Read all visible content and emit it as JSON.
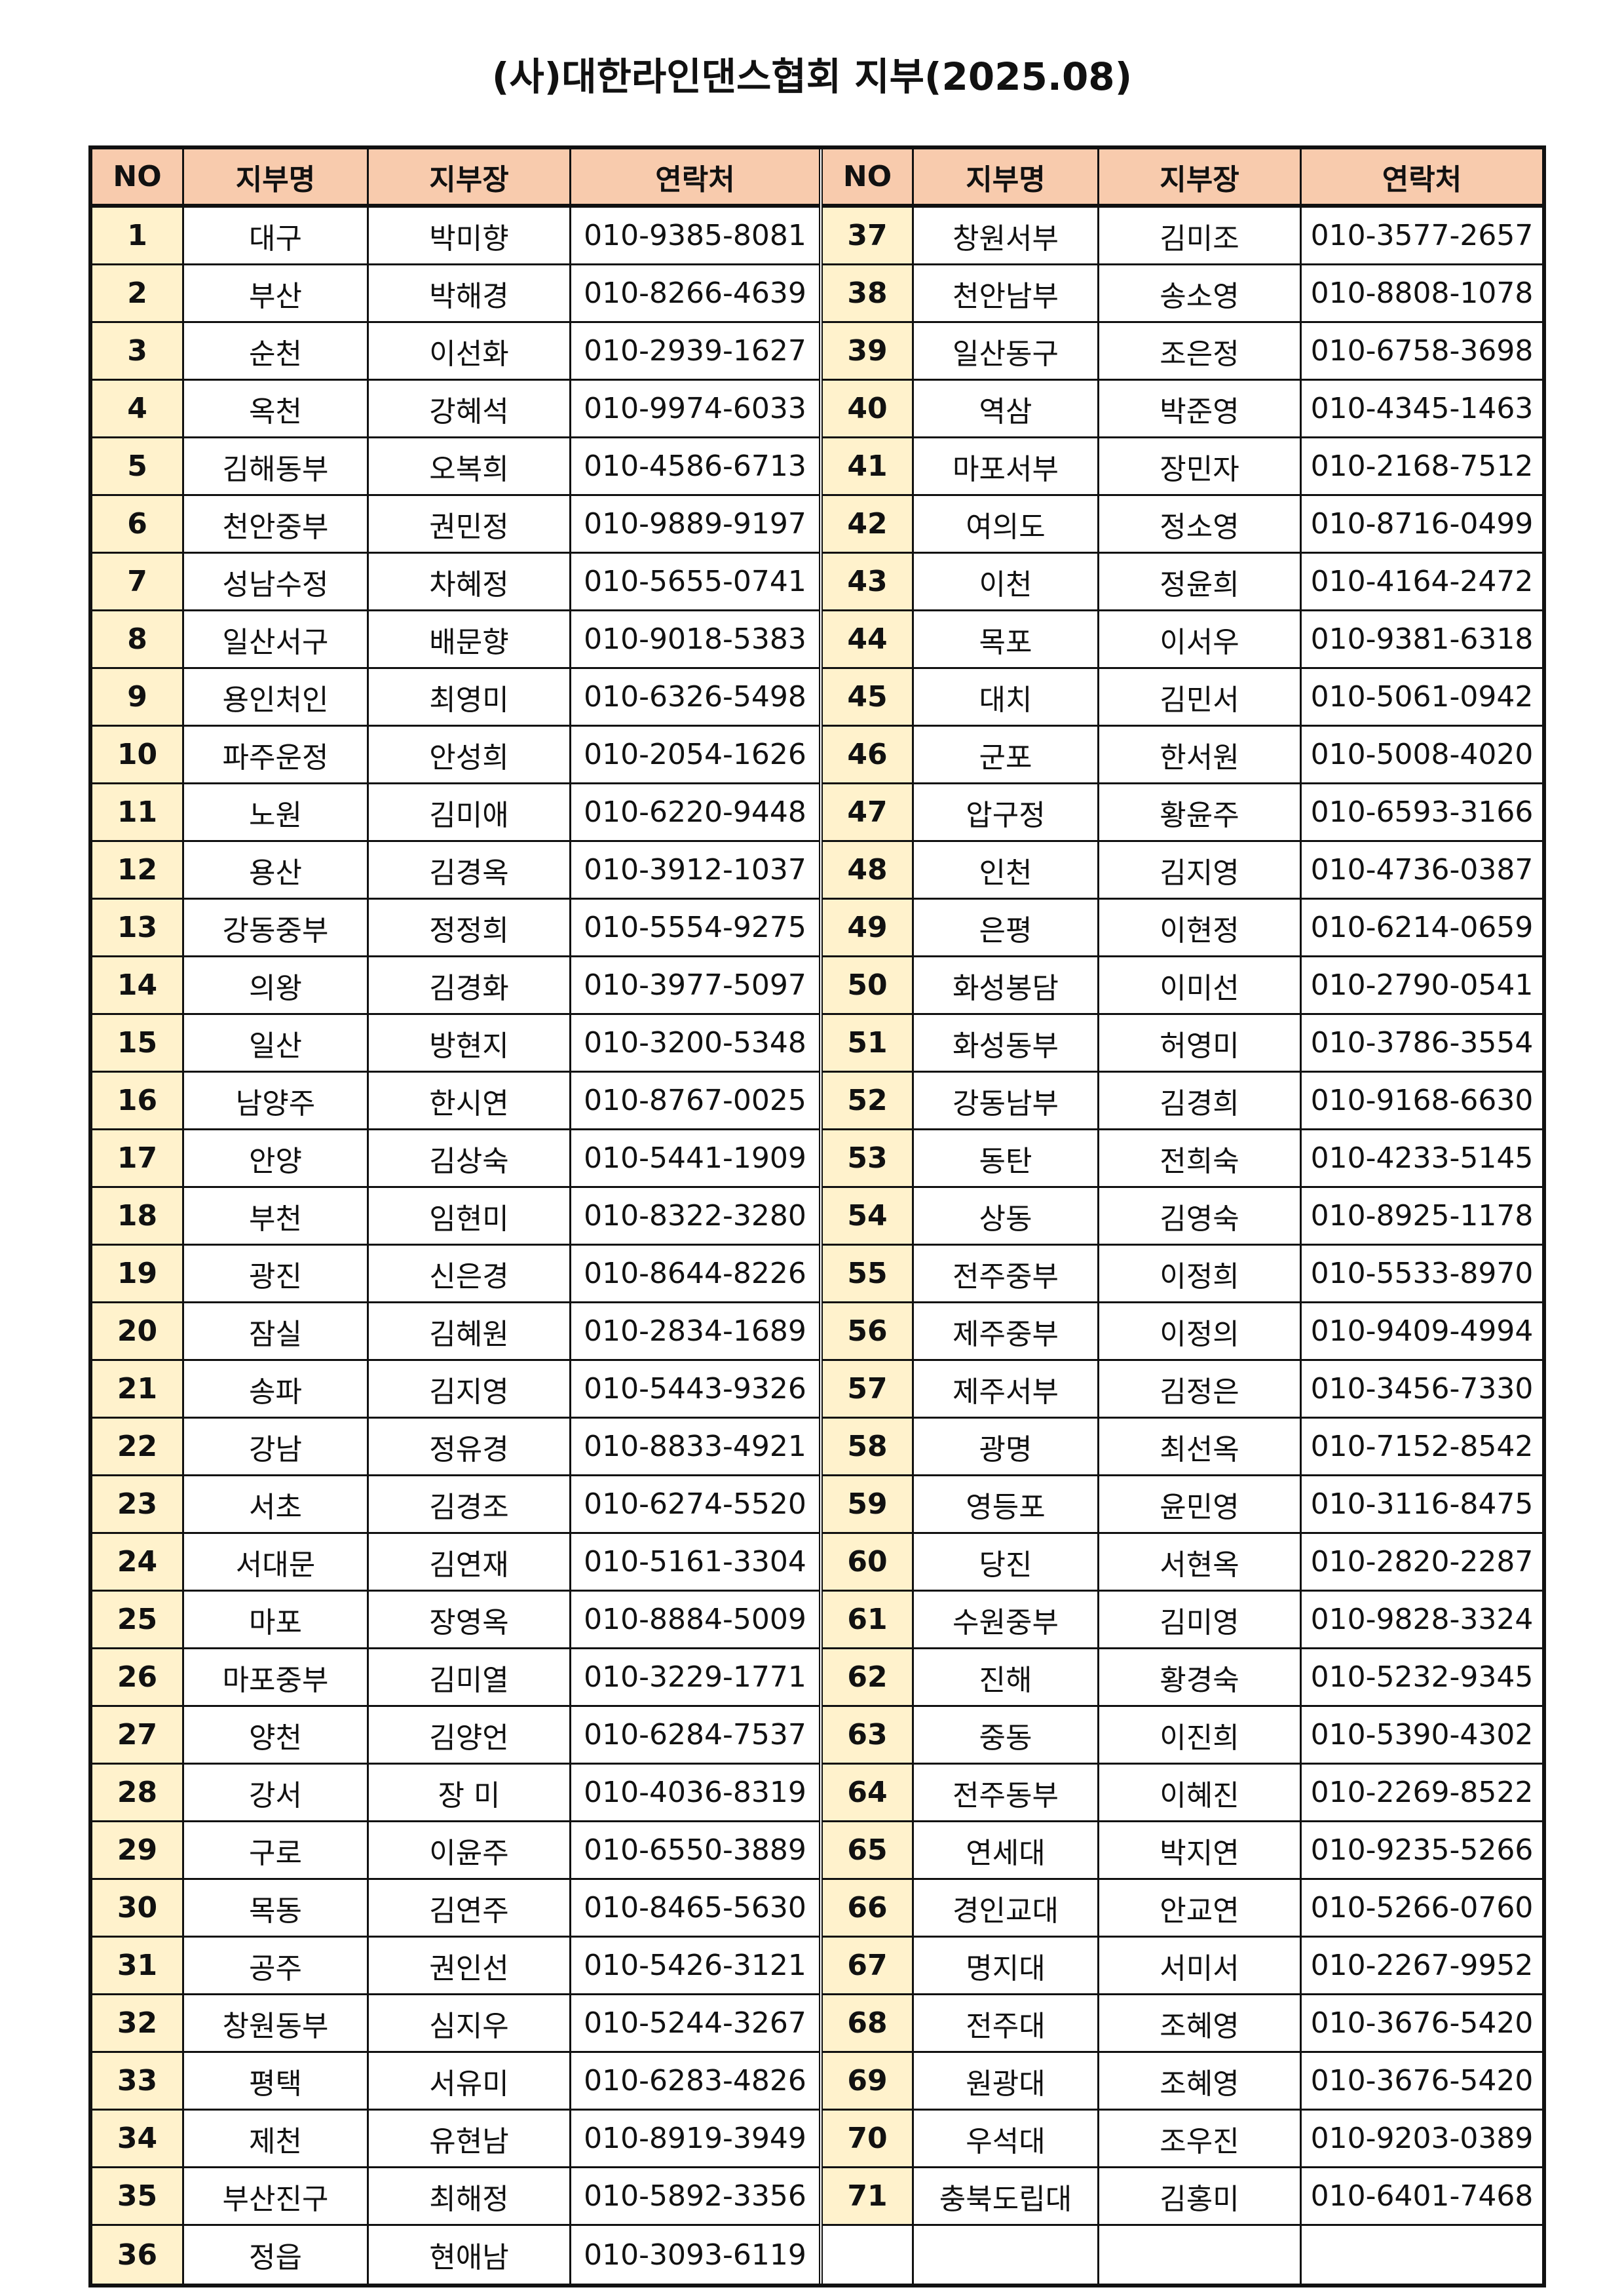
{
  "title": "(사)대한라인댄스협회 지부(2025.08)",
  "headers": [
    "NO",
    "지부명",
    "지부장",
    "연락처"
  ],
  "colors": {
    "header_bg": "#f8cbad",
    "no_bg": "#fff2cc"
  },
  "left_rows": [
    [
      "1",
      "대구",
      "박미향",
      "010-9385-8081"
    ],
    [
      "2",
      "부산",
      "박해경",
      "010-8266-4639"
    ],
    [
      "3",
      "순천",
      "이선화",
      "010-2939-1627"
    ],
    [
      "4",
      "옥천",
      "강혜석",
      "010-9974-6033"
    ],
    [
      "5",
      "김해동부",
      "오복희",
      "010-4586-6713"
    ],
    [
      "6",
      "천안중부",
      "권민정",
      "010-9889-9197"
    ],
    [
      "7",
      "성남수정",
      "차혜정",
      "010-5655-0741"
    ],
    [
      "8",
      "일산서구",
      "배문향",
      "010-9018-5383"
    ],
    [
      "9",
      "용인처인",
      "최영미",
      "010-6326-5498"
    ],
    [
      "10",
      "파주운정",
      "안성희",
      "010-2054-1626"
    ],
    [
      "11",
      "노원",
      "김미애",
      "010-6220-9448"
    ],
    [
      "12",
      "용산",
      "김경옥",
      "010-3912-1037"
    ],
    [
      "13",
      "강동중부",
      "정정희",
      "010-5554-9275"
    ],
    [
      "14",
      "의왕",
      "김경화",
      "010-3977-5097"
    ],
    [
      "15",
      "일산",
      "방현지",
      "010-3200-5348"
    ],
    [
      "16",
      "남양주",
      "한시연",
      "010-8767-0025"
    ],
    [
      "17",
      "안양",
      "김상숙",
      "010-5441-1909"
    ],
    [
      "18",
      "부천",
      "임현미",
      "010-8322-3280"
    ],
    [
      "19",
      "광진",
      "신은경",
      "010-8644-8226"
    ],
    [
      "20",
      "잠실",
      "김혜원",
      "010-2834-1689"
    ],
    [
      "21",
      "송파",
      "김지영",
      "010-5443-9326"
    ],
    [
      "22",
      "강남",
      "정유경",
      "010-8833-4921"
    ],
    [
      "23",
      "서초",
      "김경조",
      "010-6274-5520"
    ],
    [
      "24",
      "서대문",
      "김연재",
      "010-5161-3304"
    ],
    [
      "25",
      "마포",
      "장영옥",
      "010-8884-5009"
    ],
    [
      "26",
      "마포중부",
      "김미열",
      "010-3229-1771"
    ],
    [
      "27",
      "양천",
      "김양언",
      "010-6284-7537"
    ],
    [
      "28",
      "강서",
      "장  미",
      "010-4036-8319"
    ],
    [
      "29",
      "구로",
      "이윤주",
      "010-6550-3889"
    ],
    [
      "30",
      "목동",
      "김연주",
      "010-8465-5630"
    ],
    [
      "31",
      "공주",
      "권인선",
      "010-5426-3121"
    ],
    [
      "32",
      "창원동부",
      "심지우",
      "010-5244-3267"
    ],
    [
      "33",
      "평택",
      "서유미",
      "010-6283-4826"
    ],
    [
      "34",
      "제천",
      "유현남",
      "010-8919-3949"
    ],
    [
      "35",
      "부산진구",
      "최해정",
      "010-5892-3356"
    ],
    [
      "36",
      "정읍",
      "현애남",
      "010-3093-6119"
    ]
  ],
  "right_rows": [
    [
      "37",
      "창원서부",
      "김미조",
      "010-3577-2657"
    ],
    [
      "38",
      "천안남부",
      "송소영",
      "010-8808-1078"
    ],
    [
      "39",
      "일산동구",
      "조은정",
      "010-6758-3698"
    ],
    [
      "40",
      "역삼",
      "박준영",
      "010-4345-1463"
    ],
    [
      "41",
      "마포서부",
      "장민자",
      "010-2168-7512"
    ],
    [
      "42",
      "여의도",
      "정소영",
      "010-8716-0499"
    ],
    [
      "43",
      "이천",
      "정윤희",
      "010-4164-2472"
    ],
    [
      "44",
      "목포",
      "이서우",
      "010-9381-6318"
    ],
    [
      "45",
      "대치",
      "김민서",
      "010-5061-0942"
    ],
    [
      "46",
      "군포",
      "한서원",
      "010-5008-4020"
    ],
    [
      "47",
      "압구정",
      "황윤주",
      "010-6593-3166"
    ],
    [
      "48",
      "인천",
      "김지영",
      "010-4736-0387"
    ],
    [
      "49",
      "은평",
      "이현정",
      "010-6214-0659"
    ],
    [
      "50",
      "화성봉담",
      "이미선",
      "010-2790-0541"
    ],
    [
      "51",
      "화성동부",
      "허영미",
      "010-3786-3554"
    ],
    [
      "52",
      "강동남부",
      "김경희",
      "010-9168-6630"
    ],
    [
      "53",
      "동탄",
      "전희숙",
      "010-4233-5145"
    ],
    [
      "54",
      "상동",
      "김영숙",
      "010-8925-1178"
    ],
    [
      "55",
      "전주중부",
      "이정희",
      "010-5533-8970"
    ],
    [
      "56",
      "제주중부",
      "이정의",
      "010-9409-4994"
    ],
    [
      "57",
      "제주서부",
      "김정은",
      "010-3456-7330"
    ],
    [
      "58",
      "광명",
      "최선옥",
      "010-7152-8542"
    ],
    [
      "59",
      "영등포",
      "윤민영",
      "010-3116-8475"
    ],
    [
      "60",
      "당진",
      "서현옥",
      "010-2820-2287"
    ],
    [
      "61",
      "수원중부",
      "김미영",
      "010-9828-3324"
    ],
    [
      "62",
      "진해",
      "황경숙",
      "010-5232-9345"
    ],
    [
      "63",
      "중동",
      "이진희",
      "010-5390-4302"
    ],
    [
      "64",
      "전주동부",
      "이혜진",
      "010-2269-8522"
    ],
    [
      "65",
      "연세대",
      "박지연",
      "010-9235-5266"
    ],
    [
      "66",
      "경인교대",
      "안교연",
      "010-5266-0760"
    ],
    [
      "67",
      "명지대",
      "서미서",
      "010-2267-9952"
    ],
    [
      "68",
      "전주대",
      "조혜영",
      "010-3676-5420"
    ],
    [
      "69",
      "원광대",
      "조혜영",
      "010-3676-5420"
    ],
    [
      "70",
      "우석대",
      "조우진",
      "010-9203-0389"
    ],
    [
      "71",
      "충북도립대",
      "김홍미",
      "010-6401-7468"
    ],
    [
      "",
      "",
      "",
      ""
    ]
  ]
}
